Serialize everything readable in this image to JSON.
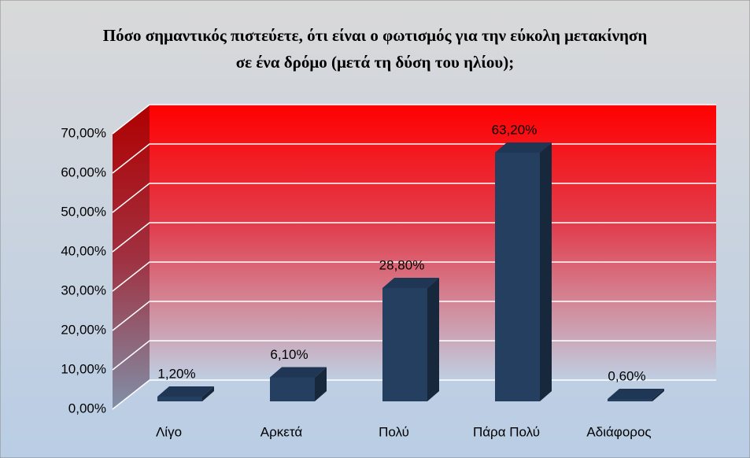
{
  "chart_data": {
    "type": "bar3d",
    "title": "Πόσο σημαντικός πιστεύετε, ότι είναι ο φωτισμός για την εύκολη μετακίνηση σε ένα δρόμο (μετά τη δύση του ηλίου);",
    "categories": [
      "Λίγο",
      "Αρκετά",
      "Πολύ",
      "Πάρα Πολύ",
      "Αδιάφορος"
    ],
    "values": [
      1.2,
      6.1,
      28.8,
      63.2,
      0.6
    ],
    "value_labels": [
      "1,20%",
      "6,10%",
      "28,80%",
      "63,20%",
      "0,60%"
    ],
    "color": "#243f60",
    "ylim": [
      0,
      70
    ],
    "yticks": [
      {
        "value": 0,
        "label": "0,00%"
      },
      {
        "value": 10,
        "label": "10,00%"
      },
      {
        "value": 20,
        "label": "20,00%"
      },
      {
        "value": 30,
        "label": "30,00%"
      },
      {
        "value": 40,
        "label": "40,00%"
      },
      {
        "value": 50,
        "label": "50,00%"
      },
      {
        "value": 60,
        "label": "60,00%"
      },
      {
        "value": 70,
        "label": "70,00%"
      }
    ],
    "grid": true
  }
}
